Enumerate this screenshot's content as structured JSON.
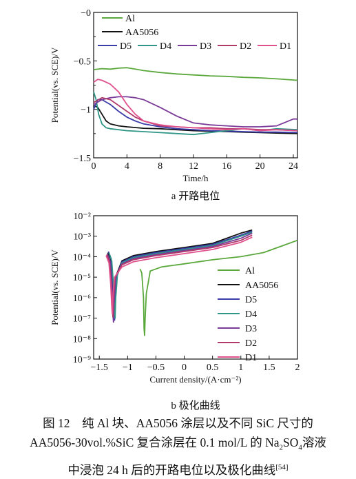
{
  "chart_data": [
    {
      "type": "line",
      "panel_label": "a 开路电位",
      "xlabel": "Time/h",
      "ylabel": "Potential(vs. SCE)/V",
      "xlim": [
        0,
        24.5
      ],
      "ylim": [
        -1.5,
        0
      ],
      "x_ticks": [
        0,
        4,
        8,
        12,
        16,
        20,
        24
      ],
      "y_ticks": [
        0,
        -0.5,
        -1,
        -1.5
      ],
      "y_tick_labels": [
        "−0",
        "−0.5",
        "−1",
        "−1.5"
      ],
      "legend": [
        "Al",
        "AA5056",
        "D5",
        "D4",
        "D3",
        "D2",
        "D1"
      ],
      "series": [
        {
          "name": "Al",
          "color": "#5aa83c",
          "x": [
            0,
            1,
            2,
            3,
            4,
            5,
            6,
            8,
            10,
            12,
            14,
            16,
            18,
            20,
            22,
            24.5
          ],
          "y": [
            -0.59,
            -0.58,
            -0.585,
            -0.575,
            -0.57,
            -0.585,
            -0.6,
            -0.62,
            -0.635,
            -0.645,
            -0.655,
            -0.66,
            -0.67,
            -0.675,
            -0.685,
            -0.7
          ]
        },
        {
          "name": "AA5056",
          "color": "#111111",
          "x": [
            0,
            0.5,
            1,
            1.5,
            2,
            3,
            4,
            6,
            8,
            10,
            12,
            14,
            16,
            18,
            20,
            22,
            24.5
          ],
          "y": [
            -0.96,
            -0.98,
            -1.05,
            -1.12,
            -1.15,
            -1.17,
            -1.18,
            -1.195,
            -1.2,
            -1.21,
            -1.22,
            -1.225,
            -1.23,
            -1.235,
            -1.24,
            -1.245,
            -1.25
          ]
        },
        {
          "name": "D5",
          "color": "#3a3aa8",
          "x": [
            0,
            0.5,
            1,
            2,
            3,
            4,
            5,
            6,
            8,
            10,
            12,
            14,
            16,
            18,
            20,
            22,
            24.5
          ],
          "y": [
            -1.0,
            -0.9,
            -0.9,
            -0.95,
            -1.02,
            -1.08,
            -1.12,
            -1.15,
            -1.18,
            -1.2,
            -1.21,
            -1.22,
            -1.225,
            -1.23,
            -1.235,
            -1.235,
            -1.24
          ]
        },
        {
          "name": "D4",
          "color": "#2f9688",
          "x": [
            0,
            0.3,
            0.6,
            1,
            1.5,
            2,
            3,
            4,
            6,
            8,
            10,
            12,
            14,
            16,
            18,
            20,
            22,
            24.5
          ],
          "y": [
            -0.82,
            -0.9,
            -1.05,
            -1.15,
            -1.19,
            -1.2,
            -1.21,
            -1.22,
            -1.23,
            -1.24,
            -1.25,
            -1.26,
            -1.24,
            -1.22,
            -1.2,
            -1.22,
            -1.2,
            -1.21
          ]
        },
        {
          "name": "D3",
          "color": "#7a3a98",
          "x": [
            0,
            1,
            2,
            3,
            4,
            5,
            6,
            8,
            10,
            12,
            14,
            16,
            18,
            20,
            22,
            24,
            24.5
          ],
          "y": [
            -0.95,
            -0.9,
            -0.88,
            -0.87,
            -0.87,
            -0.88,
            -0.9,
            -0.98,
            -1.07,
            -1.14,
            -1.16,
            -1.17,
            -1.18,
            -1.18,
            -1.17,
            -1.1,
            -1.1
          ]
        },
        {
          "name": "D2",
          "color": "#b03a6a",
          "x": [
            0,
            1,
            2,
            3,
            4,
            5,
            6,
            8,
            10,
            12,
            14,
            16,
            18,
            20,
            22,
            24.5
          ],
          "y": [
            -0.93,
            -0.88,
            -0.9,
            -0.96,
            -1.02,
            -1.08,
            -1.12,
            -1.17,
            -1.18,
            -1.19,
            -1.19,
            -1.2,
            -1.2,
            -1.21,
            -1.21,
            -1.22
          ]
        },
        {
          "name": "D1",
          "color": "#e0508c",
          "x": [
            0,
            0.5,
            1,
            2,
            3,
            4,
            5,
            6,
            8,
            10,
            12,
            14,
            16,
            18,
            20,
            22,
            24.5
          ],
          "y": [
            -0.72,
            -0.69,
            -0.7,
            -0.74,
            -0.82,
            -0.95,
            -1.05,
            -1.12,
            -1.16,
            -1.18,
            -1.19,
            -1.2,
            -1.21,
            -1.2,
            -1.22,
            -1.21,
            -1.22
          ]
        }
      ]
    },
    {
      "type": "line",
      "panel_label": "b 极化曲线",
      "xlabel": "Current density/(A·cm⁻²)",
      "ylabel": "Potential(vs. SCE)/V",
      "xlim": [
        -1.6,
        2
      ],
      "ylim": [
        -9,
        -2
      ],
      "y_scale": "log",
      "x_ticks": [
        -1.5,
        -1,
        -0.5,
        0,
        0.5,
        1,
        1.5,
        2
      ],
      "x_tick_labels": [
        "−1.5",
        "−1",
        "−0.5",
        "0",
        "0.5",
        "1",
        "1.5",
        "2"
      ],
      "y_ticks": [
        -2,
        -3,
        -4,
        -5,
        -6,
        -7,
        -8,
        -9
      ],
      "y_tick_labels": [
        "10⁻²",
        "10⁻³",
        "10⁻⁴",
        "10⁻⁵",
        "10⁻⁶",
        "10⁻⁷",
        "10⁻⁸",
        "10⁻⁹"
      ],
      "legend": [
        "Al",
        "AA5056",
        "D5",
        "D4",
        "D3",
        "D2",
        "D1"
      ],
      "series": [
        {
          "name": "Al",
          "color": "#5aa83c",
          "x": [
            -0.78,
            -0.75,
            -0.72,
            -0.71,
            -0.7,
            -0.69,
            -0.67,
            -0.6,
            -0.4,
            0,
            0.5,
            1,
            1.4,
            1.7,
            2
          ],
          "y": [
            -4.6,
            -4.8,
            -6.0,
            -7.5,
            -7.85,
            -7.0,
            -5.8,
            -4.7,
            -4.5,
            -4.35,
            -4.15,
            -4.0,
            -3.8,
            -3.5,
            -3.2
          ]
        },
        {
          "name": "AA5056",
          "color": "#111111",
          "x": [
            -1.35,
            -1.3,
            -1.27,
            -1.25,
            -1.24,
            -1.23,
            -1.2,
            -1.1,
            -0.9,
            -0.5,
            0,
            0.5,
            1,
            1.2
          ],
          "y": [
            -3.8,
            -4.1,
            -5.2,
            -6.5,
            -6.9,
            -6.0,
            -4.9,
            -4.2,
            -3.95,
            -3.75,
            -3.55,
            -3.35,
            -2.85,
            -2.7
          ]
        },
        {
          "name": "D5",
          "color": "#3a3aa8",
          "x": [
            -1.34,
            -1.29,
            -1.26,
            -1.24,
            -1.23,
            -1.22,
            -1.19,
            -1.1,
            -0.9,
            -0.5,
            0,
            0.5,
            1,
            1.2
          ],
          "y": [
            -3.75,
            -4.1,
            -5.3,
            -6.7,
            -7.1,
            -6.1,
            -4.9,
            -4.25,
            -4.0,
            -3.8,
            -3.6,
            -3.4,
            -2.95,
            -2.75
          ]
        },
        {
          "name": "D4",
          "color": "#2f9688",
          "x": [
            -1.33,
            -1.28,
            -1.25,
            -1.23,
            -1.22,
            -1.21,
            -1.18,
            -1.1,
            -0.9,
            -0.5,
            0,
            0.5,
            1,
            1.2
          ],
          "y": [
            -3.8,
            -4.2,
            -5.4,
            -6.6,
            -7.0,
            -6.0,
            -4.9,
            -4.3,
            -4.05,
            -3.85,
            -3.65,
            -3.45,
            -3.0,
            -2.8
          ]
        },
        {
          "name": "D3",
          "color": "#7a3a98",
          "x": [
            -1.36,
            -1.31,
            -1.28,
            -1.26,
            -1.25,
            -1.24,
            -1.21,
            -1.1,
            -0.9,
            -0.5,
            0,
            0.5,
            1,
            1.2
          ],
          "y": [
            -3.85,
            -4.2,
            -5.3,
            -6.8,
            -7.2,
            -6.2,
            -5.0,
            -4.35,
            -4.1,
            -3.9,
            -3.7,
            -3.5,
            -3.1,
            -2.85
          ]
        },
        {
          "name": "D2",
          "color": "#b03a6a",
          "x": [
            -1.37,
            -1.32,
            -1.29,
            -1.27,
            -1.26,
            -1.25,
            -1.22,
            -1.1,
            -0.9,
            -0.5,
            0,
            0.5,
            1,
            1.2
          ],
          "y": [
            -3.9,
            -4.25,
            -5.3,
            -6.5,
            -6.95,
            -6.0,
            -5.0,
            -4.4,
            -4.15,
            -3.95,
            -3.75,
            -3.55,
            -3.2,
            -2.95
          ]
        },
        {
          "name": "D1",
          "color": "#e0508c",
          "x": [
            -1.38,
            -1.33,
            -1.3,
            -1.28,
            -1.27,
            -1.26,
            -1.23,
            -1.1,
            -0.9,
            -0.5,
            0,
            0.5,
            1,
            1.2
          ],
          "y": [
            -3.95,
            -4.3,
            -5.3,
            -6.4,
            -6.8,
            -5.9,
            -5.0,
            -4.5,
            -4.25,
            -4.05,
            -3.85,
            -3.65,
            -3.3,
            -3.05
          ]
        }
      ]
    }
  ],
  "caption": {
    "line1": "图 12 纯 Al 块、AA5056 涂层以及不同 SiC 尺寸的",
    "line2_pre": "AA5056-30vol.%SiC 复合涂层在 0.1 mol/L 的 Na",
    "line2_sub1": "2",
    "line2_mid": "SO",
    "line2_sub2": "4",
    "line2_post": "溶液",
    "line3": "中浸泡 24 h 后的开路电位以及极化曲线",
    "line3_ref": "[54]"
  }
}
